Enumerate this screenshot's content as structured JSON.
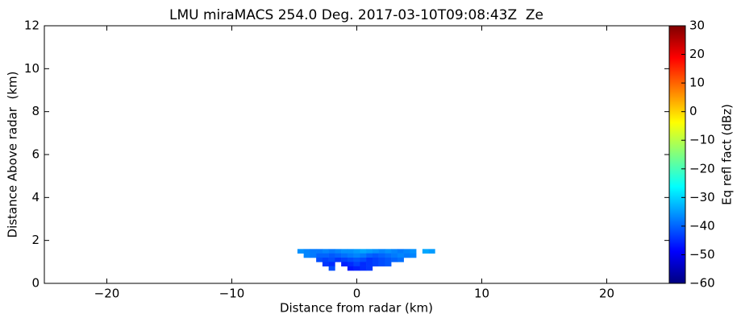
{
  "chart_data": {
    "type": "heatmap",
    "title": "LMU miraMACS 254.0 Deg. 2017-03-10T09:08:43Z  Ze",
    "x_label": "Distance from radar (km)",
    "y_label": "Distance Above radar  (km)",
    "colorbar_label": "Eq refl fact (dBz)",
    "colormap": "jet",
    "x": [
      -4.5,
      -4,
      -3.5,
      -3,
      -2.5,
      -2,
      -1.5,
      -1,
      -0.5,
      0,
      0.5,
      1,
      1.5,
      2,
      2.5,
      3,
      3.5,
      4,
      4.5,
      5,
      5.5,
      6
    ],
    "y": [
      1.5,
      1.3,
      1.1,
      0.9,
      0.7
    ],
    "values": [
      [
        -36,
        -37,
        -38,
        -38,
        -37,
        -38,
        -37,
        -36,
        -36,
        -35,
        -34,
        -35,
        -36,
        -37,
        -36,
        -37,
        -38,
        -37,
        -36,
        null,
        -34,
        -35
      ],
      [
        null,
        -37,
        -38,
        -40,
        -40,
        -41,
        -40,
        -39,
        -38,
        -37,
        -38,
        -40,
        -41,
        -40,
        -39,
        -38,
        -37,
        -38,
        -37,
        null,
        null,
        null
      ],
      [
        null,
        null,
        null,
        -42,
        -43,
        -42,
        -44,
        -43,
        -42,
        -41,
        -42,
        -44,
        -43,
        -42,
        -41,
        -40,
        -39,
        null,
        null,
        null,
        null,
        null
      ],
      [
        null,
        null,
        null,
        null,
        -44,
        -45,
        null,
        -46,
        -45,
        -43,
        -45,
        -44,
        -43,
        -42,
        -41,
        null,
        null,
        null,
        null,
        null,
        null,
        null
      ],
      [
        null,
        null,
        null,
        null,
        null,
        -42,
        null,
        null,
        -47,
        -46,
        -45,
        -44,
        null,
        null,
        null,
        null,
        null,
        null,
        null,
        null,
        null,
        null
      ]
    ],
    "cell_size": [
      0.5,
      0.2
    ],
    "xlim": [
      -25,
      25
    ],
    "ylim": [
      0,
      12
    ],
    "clim": [
      -60,
      30
    ],
    "xticks": [
      {
        "value": -20,
        "label": "−20"
      },
      {
        "value": -10,
        "label": "−10"
      },
      0,
      10,
      20
    ],
    "yticks": [
      0,
      2,
      4,
      6,
      8,
      10,
      12
    ],
    "cticks": [
      {
        "value": -60,
        "label": "−60"
      },
      {
        "value": -50,
        "label": "−50"
      },
      {
        "value": -40,
        "label": "−40"
      },
      {
        "value": -30,
        "label": "−30"
      },
      {
        "value": -20,
        "label": "−20"
      },
      {
        "value": -10,
        "label": "−10"
      },
      0,
      10,
      20,
      30
    ]
  }
}
